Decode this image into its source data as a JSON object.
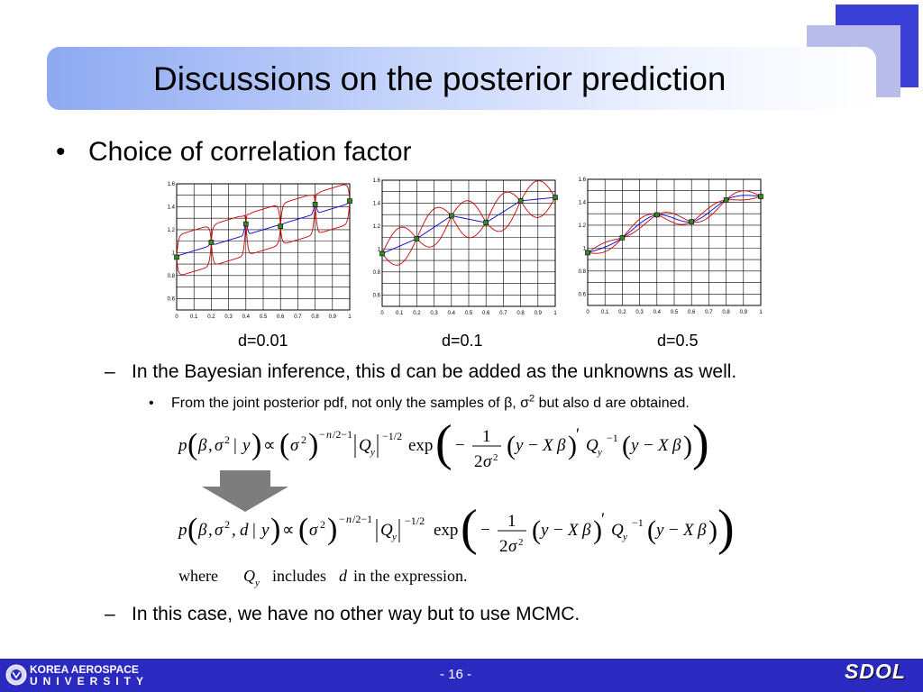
{
  "slide": {
    "title": "Discussions on the posterior prediction",
    "bullet1": "Choice of correlation factor",
    "captions": [
      "d=0.01",
      "d=0.1",
      "d=0.5"
    ],
    "dash1": "In the Bayesian inference, this d can be added as the unknowns as well.",
    "small_bullet": "From the joint posterior pdf, not only the samples of β, σ2 but also d are obtained.",
    "eq1": "p(β,σ² | y) ∝ (σ²)^(−n/2−1) |Q_y|^(−1/2) exp( − 1/(2σ²) (y − Xβ)′ Q_y^(−1) (y − Xβ) )",
    "eq2": "p(β,σ², d | y) ∝ (σ²)^(−n/2−1) |Q_y|^(−1/2) exp( − 1/(2σ²) (y − Xβ)′ Q_y^(−1) (y − Xβ) )",
    "where_text": "where Q_y includes d in the expression.",
    "dash2": "In this case, we have no other way but to use MCMC."
  },
  "footer": {
    "university_line1": "KOREA AEROSPACE",
    "university_line2": "UNIVERSITY",
    "page": "- 16 -",
    "brand": "SDOL"
  },
  "colors": {
    "footer_bg": "#2a2ac0",
    "accent": "#3a3fd8",
    "mean_line": "#0000cc",
    "bound_line": "#cc0000",
    "point": "#2e8b22"
  },
  "chart_data": [
    {
      "type": "line",
      "caption": "d=0.01",
      "xlim": [
        0,
        1
      ],
      "ylim": [
        0.5,
        1.6
      ],
      "xticks": [
        "0",
        "0.1",
        "0.2",
        "0.3",
        "0.4",
        "0.5",
        "0.6",
        "0.7",
        "0.8",
        "0.9",
        "1"
      ],
      "yticks": [
        "0.6",
        "0.8",
        "1",
        "1.2",
        "1.4",
        "1.6"
      ],
      "points": {
        "x": [
          0,
          0.2,
          0.4,
          0.6,
          0.8,
          1.0
        ],
        "y": [
          0.96,
          1.09,
          1.25,
          1.23,
          1.42,
          1.45
        ]
      },
      "d": 0.01
    },
    {
      "type": "line",
      "caption": "d=0.1",
      "xlim": [
        0,
        1
      ],
      "ylim": [
        0.5,
        1.6
      ],
      "xticks": [
        "0",
        "0.1",
        "0.2",
        "0.3",
        "0.4",
        "0.5",
        "0.6",
        "0.7",
        "0.8",
        "0.9",
        "1"
      ],
      "yticks": [
        "0.6",
        "0.8",
        "1",
        "1.2",
        "1.4",
        "1.6"
      ],
      "points": {
        "x": [
          0,
          0.2,
          0.4,
          0.6,
          0.8,
          1.0
        ],
        "y": [
          0.96,
          1.09,
          1.29,
          1.23,
          1.42,
          1.45
        ]
      },
      "d": 0.1
    },
    {
      "type": "line",
      "caption": "d=0.5",
      "xlim": [
        0,
        1
      ],
      "ylim": [
        0.5,
        1.6
      ],
      "xticks": [
        "0",
        "0.1",
        "0.2",
        "0.3",
        "0.4",
        "0.5",
        "0.6",
        "0.7",
        "0.8",
        "0.9",
        "1"
      ],
      "yticks": [
        "0.6",
        "0.8",
        "1",
        "1.2",
        "1.4",
        "1.6"
      ],
      "points": {
        "x": [
          0,
          0.2,
          0.4,
          0.6,
          0.8,
          1.0
        ],
        "y": [
          0.96,
          1.09,
          1.29,
          1.23,
          1.42,
          1.45
        ]
      },
      "d": 0.5
    }
  ]
}
